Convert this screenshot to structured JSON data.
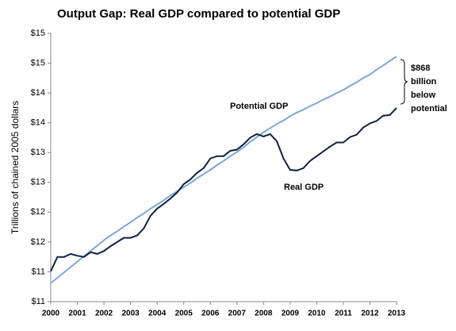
{
  "chart_data": {
    "type": "line",
    "title": "Output Gap: Real GDP compared to potential GDP",
    "y_label": "Trillions of chained 2005 dollars",
    "x": [
      2000,
      2000.25,
      2000.5,
      2000.75,
      2001,
      2001.25,
      2001.5,
      2001.75,
      2002,
      2002.25,
      2002.5,
      2002.75,
      2003,
      2003.25,
      2003.5,
      2003.75,
      2004,
      2004.25,
      2004.5,
      2004.75,
      2005,
      2005.25,
      2005.5,
      2005.75,
      2006,
      2006.25,
      2006.5,
      2006.75,
      2007,
      2007.25,
      2007.5,
      2007.75,
      2008,
      2008.25,
      2008.5,
      2008.75,
      2009,
      2009.25,
      2009.5,
      2009.75,
      2010,
      2010.25,
      2010.5,
      2010.75,
      2011,
      2011.25,
      2011.5,
      2011.75,
      2012,
      2012.25,
      2012.5,
      2012.75,
      2013
    ],
    "series": [
      {
        "name": "Real GDP",
        "color": "#0f2140",
        "values": [
          11.01,
          11.25,
          11.25,
          11.3,
          11.27,
          11.25,
          11.33,
          11.3,
          11.35,
          11.43,
          11.5,
          11.57,
          11.57,
          11.61,
          11.73,
          11.94,
          12.06,
          12.14,
          12.23,
          12.33,
          12.47,
          12.55,
          12.66,
          12.74,
          12.9,
          12.94,
          12.94,
          13.03,
          13.05,
          13.14,
          13.25,
          13.31,
          13.27,
          13.31,
          13.19,
          12.9,
          12.71,
          12.7,
          12.74,
          12.86,
          12.94,
          13.02,
          13.1,
          13.17,
          13.17,
          13.26,
          13.3,
          13.42,
          13.49,
          13.53,
          13.62,
          13.63,
          13.75
        ]
      },
      {
        "name": "Potential GDP",
        "color": "#7ba7d9",
        "values": [
          10.81,
          10.9,
          10.99,
          11.08,
          11.17,
          11.26,
          11.35,
          11.44,
          11.53,
          11.61,
          11.68,
          11.76,
          11.83,
          11.91,
          11.98,
          12.06,
          12.13,
          12.2,
          12.28,
          12.35,
          12.42,
          12.49,
          12.57,
          12.64,
          12.71,
          12.79,
          12.86,
          12.94,
          13.01,
          13.09,
          13.18,
          13.26,
          13.34,
          13.41,
          13.48,
          13.54,
          13.61,
          13.67,
          13.72,
          13.78,
          13.83,
          13.89,
          13.94,
          14.0,
          14.05,
          14.12,
          14.18,
          14.25,
          14.31,
          14.39,
          14.46,
          14.54,
          14.61
        ]
      }
    ],
    "xlim": [
      2000,
      2013
    ],
    "xticks": [
      2000,
      2001,
      2002,
      2003,
      2004,
      2005,
      2006,
      2007,
      2008,
      2009,
      2010,
      2011,
      2012,
      2013
    ],
    "ylim": [
      10.5,
      15
    ],
    "yticks": [
      {
        "value": 10.5,
        "label": "$11"
      },
      {
        "value": 11,
        "label": "$11"
      },
      {
        "value": 11.5,
        "label": "$12"
      },
      {
        "value": 12,
        "label": "$12"
      },
      {
        "value": 12.5,
        "label": "$13"
      },
      {
        "value": 13,
        "label": "$13"
      },
      {
        "value": 13.5,
        "label": "$14"
      },
      {
        "value": 14,
        "label": "$14"
      },
      {
        "value": 14.5,
        "label": "$15"
      },
      {
        "value": 15,
        "label": "$15"
      }
    ],
    "grid": false,
    "annotations": [
      "Potential GDP",
      "Real GDP",
      "$868",
      "billion",
      "below",
      "potential"
    ]
  }
}
